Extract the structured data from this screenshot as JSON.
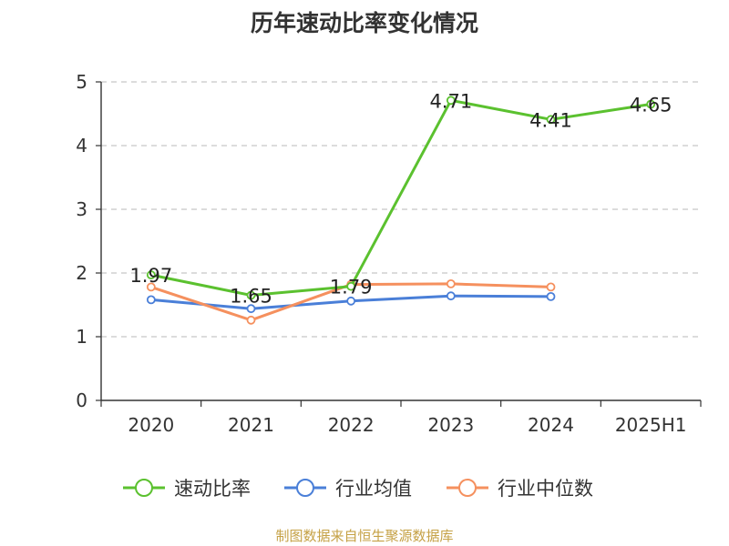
{
  "chart_data": {
    "type": "line",
    "title": "历年速动比率变化情况",
    "categories": [
      "2020",
      "2021",
      "2022",
      "2023",
      "2024",
      "2025H1"
    ],
    "ylim": [
      0,
      5
    ],
    "yticks": [
      0,
      1,
      2,
      3,
      4,
      5
    ],
    "grid": true,
    "legend_position": "bottom",
    "series": [
      {
        "name": "速动比率",
        "color": "#5bc12f",
        "values": [
          1.97,
          1.65,
          1.79,
          4.71,
          4.41,
          4.65
        ],
        "labels": [
          "1.97",
          "1.65",
          "1.79",
          "4.71",
          "4.41",
          "4.65"
        ]
      },
      {
        "name": "行业均值",
        "color": "#4a7fd8",
        "values": [
          1.58,
          1.44,
          1.56,
          1.64,
          1.63,
          null
        ]
      },
      {
        "name": "行业中位数",
        "color": "#f5905e",
        "values": [
          1.78,
          1.26,
          1.82,
          1.83,
          1.78,
          null
        ]
      }
    ]
  },
  "source_note": "制图数据来自恒生聚源数据库"
}
